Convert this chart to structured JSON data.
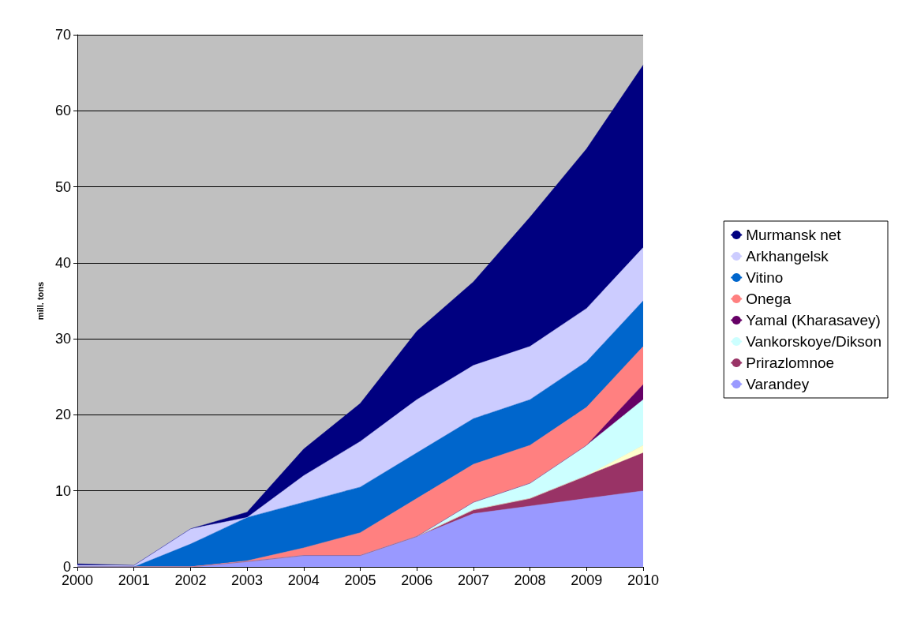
{
  "chart_data": {
    "type": "area",
    "stacked": true,
    "ylabel": "mill. tons",
    "categories": [
      "2000",
      "2001",
      "2002",
      "2003",
      "2004",
      "2005",
      "2006",
      "2007",
      "2008",
      "2009",
      "2010"
    ],
    "ylim": [
      0,
      70
    ],
    "yticks": [
      0,
      10,
      20,
      30,
      40,
      50,
      60,
      70
    ],
    "grid": "y",
    "legend": "right",
    "series": [
      {
        "name": "Varandey",
        "color": "#9999ff",
        "values": [
          0,
          0,
          0,
          0.7,
          1.5,
          1.5,
          4,
          7,
          8,
          9,
          10
        ]
      },
      {
        "name": "Prirazlomnoe",
        "color": "#993366",
        "values": [
          0,
          0,
          0,
          0,
          0,
          0,
          0,
          0.5,
          1,
          3,
          5
        ]
      },
      {
        "color": "#ffffcc",
        "values": [
          0,
          0,
          0,
          0,
          0,
          0,
          0,
          0,
          0,
          0,
          1
        ]
      },
      {
        "name": "Vankorskoye/Dikson",
        "color": "#ccffff",
        "values": [
          0,
          0,
          0,
          0,
          0,
          0,
          0,
          1,
          2,
          4,
          6
        ]
      },
      {
        "name": "Yamal (Kharasavey)",
        "color": "#660066",
        "values": [
          0,
          0,
          0,
          0,
          0,
          0,
          0,
          0,
          0,
          0,
          2
        ]
      },
      {
        "name": "Onega",
        "color": "#ff8080",
        "values": [
          0,
          0,
          0,
          0.1,
          1,
          3,
          5,
          5,
          5,
          5,
          5
        ]
      },
      {
        "name": "Vitino",
        "color": "#0066cc",
        "values": [
          0,
          0,
          3,
          5.7,
          6,
          6,
          6,
          6,
          6,
          6,
          6
        ]
      },
      {
        "name": "Arkhangelsk",
        "color": "#ccccff",
        "values": [
          0.2,
          0.2,
          2,
          0,
          3.5,
          6,
          7,
          7,
          7,
          7,
          7
        ]
      },
      {
        "name": "Murmansk net",
        "color": "#000080",
        "values": [
          0.2,
          0,
          0,
          0.7,
          3.5,
          5,
          9,
          11,
          17,
          21,
          24
        ]
      }
    ]
  }
}
